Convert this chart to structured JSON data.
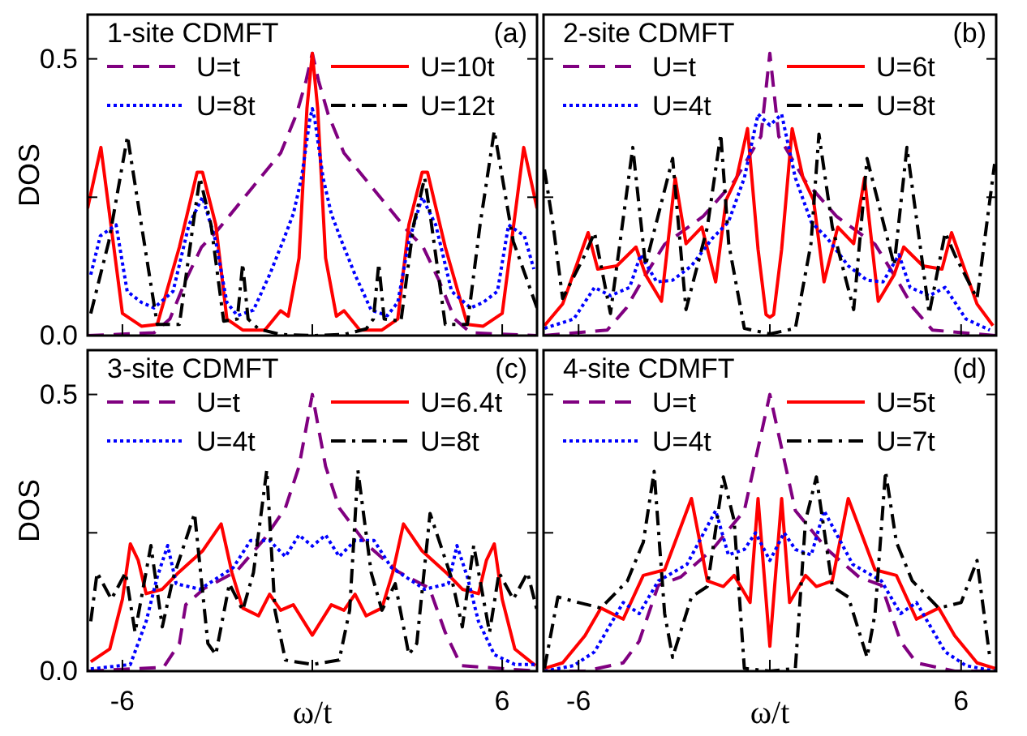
{
  "chart_data": [
    {
      "type": "line",
      "title": "1-site CDMFT",
      "annotations": [
        "(a)"
      ],
      "ylabel": "DOS",
      "xlim": [
        -7.1,
        7.1
      ],
      "ylim": [
        0,
        0.58
      ],
      "xticks": [
        -6,
        0,
        6
      ],
      "yticks": [
        {
          "value": 0,
          "label": "0.0"
        },
        {
          "value": 0.25,
          "label": null
        },
        {
          "value": 0.5,
          "label": "0.5"
        }
      ],
      "tick_labels": "y",
      "legend": "top",
      "grid": false,
      "series": [
        {
          "name": "U=t",
          "color": "#800080",
          "line_style": "dashed",
          "x": [
            -7.1,
            -5,
            -4.5,
            -4,
            -3.5,
            -3,
            -2,
            -1,
            -0.5,
            -0.2,
            0,
            0.2,
            0.5,
            1,
            2,
            3,
            3.5,
            4,
            4.5,
            5,
            7.1
          ],
          "values": [
            0,
            0.005,
            0.03,
            0.1,
            0.16,
            0.19,
            0.26,
            0.33,
            0.4,
            0.46,
            0.51,
            0.46,
            0.4,
            0.33,
            0.26,
            0.19,
            0.16,
            0.1,
            0.03,
            0.005,
            0
          ]
        },
        {
          "name": "U=10t",
          "color": "#ff0000",
          "line_style": "solid",
          "x": [
            -7.1,
            -6.68,
            -6.0,
            -5.4,
            -4.9,
            -4.2,
            -3.64,
            -3.47,
            -3.05,
            -2.7,
            -2.2,
            -1.5,
            -1.0,
            -0.76,
            -0.42,
            -0.17,
            0,
            0.17,
            0.42,
            0.76,
            1.0,
            1.5,
            2.2,
            2.7,
            3.05,
            3.47,
            3.64,
            4.2,
            4.9,
            5.4,
            6.0,
            6.68,
            7.1
          ],
          "values": [
            0.23,
            0.34,
            0.04,
            0.017,
            0.02,
            0.16,
            0.295,
            0.295,
            0.2,
            0.03,
            0.01,
            0.01,
            0.045,
            0.035,
            0.14,
            0.41,
            0.51,
            0.41,
            0.14,
            0.035,
            0.045,
            0.01,
            0.01,
            0.03,
            0.2,
            0.295,
            0.295,
            0.16,
            0.02,
            0.017,
            0.04,
            0.34,
            0.23
          ]
        },
        {
          "name": "U=8t",
          "color": "#0000ff",
          "line_style": "dotted",
          "x": [
            -7.0,
            -6.7,
            -6.2,
            -5.85,
            -5.4,
            -5.0,
            -4.4,
            -3.9,
            -3.47,
            -3.05,
            -2.7,
            -2.37,
            -1.86,
            -1.35,
            -0.93,
            -0.6,
            -0.34,
            -0.08,
            0,
            0.08,
            0.34,
            0.6,
            0.93,
            1.35,
            1.86,
            2.37,
            2.7,
            3.05,
            3.47,
            3.9,
            4.4,
            5.0,
            5.4,
            5.85,
            6.2,
            6.7,
            7.0
          ],
          "values": [
            0.11,
            0.18,
            0.2,
            0.08,
            0.06,
            0.05,
            0.08,
            0.2,
            0.25,
            0.17,
            0.06,
            0.036,
            0.046,
            0.11,
            0.17,
            0.22,
            0.285,
            0.39,
            0.41,
            0.39,
            0.285,
            0.22,
            0.17,
            0.11,
            0.046,
            0.036,
            0.06,
            0.17,
            0.25,
            0.2,
            0.08,
            0.05,
            0.06,
            0.08,
            0.2,
            0.18,
            0.12
          ]
        },
        {
          "name": "U=12t",
          "color": "#000000",
          "line_style": "dashdot",
          "x": [
            -7.0,
            -6.43,
            -5.84,
            -5.4,
            -4.9,
            -4.2,
            -3.72,
            -3.55,
            -3.2,
            -2.8,
            -2.37,
            -2.2,
            -2.03,
            -1.7,
            -1.0,
            0,
            1.0,
            1.7,
            1.93,
            2.1,
            2.27,
            2.8,
            3.2,
            3.55,
            3.72,
            4.2,
            4.9,
            5.3,
            5.75,
            6.35,
            7.1
          ],
          "values": [
            0.04,
            0.17,
            0.36,
            0.2,
            0.02,
            0.02,
            0.22,
            0.285,
            0.2,
            0.026,
            0.03,
            0.13,
            0.03,
            0.012,
            0.002,
            0,
            0.002,
            0.012,
            0.03,
            0.13,
            0.03,
            0.026,
            0.2,
            0.285,
            0.22,
            0.02,
            0.02,
            0.2,
            0.37,
            0.17,
            0.05
          ]
        }
      ]
    },
    {
      "type": "line",
      "title": "2-site CDMFT",
      "annotations": [
        "(b)"
      ],
      "xlim": [
        -7.1,
        7.1
      ],
      "ylim": [
        0,
        0.58
      ],
      "xticks": [
        -6,
        0,
        6
      ],
      "yticks": [
        {
          "value": 0,
          "label": null
        },
        {
          "value": 0.25,
          "label": null
        },
        {
          "value": 0.5,
          "label": null
        }
      ],
      "tick_labels": false,
      "legend": "top",
      "grid": false,
      "series": [
        {
          "name": "U=t",
          "color": "#800080",
          "line_style": "dashed",
          "x": [
            -7.1,
            -5.1,
            -4.5,
            -4,
            -3.3,
            -2.1,
            -1.1,
            -0.28,
            0,
            0.28,
            1.1,
            2.1,
            3.3,
            4,
            4.5,
            5.1,
            7.1
          ],
          "values": [
            0,
            0.01,
            0.05,
            0.1,
            0.165,
            0.215,
            0.28,
            0.36,
            0.51,
            0.36,
            0.28,
            0.215,
            0.165,
            0.1,
            0.05,
            0.01,
            0
          ]
        },
        {
          "name": "U=6t",
          "color": "#ff0000",
          "line_style": "solid",
          "x": [
            -7.07,
            -6.5,
            -5.7,
            -5.4,
            -4.8,
            -4.2,
            -3.9,
            -3.4,
            -2.97,
            -2.63,
            -2.13,
            -1.7,
            -1.37,
            -1.04,
            -0.7,
            -0.37,
            -0.12,
            0,
            0.12,
            0.37,
            0.7,
            1.04,
            1.37,
            1.7,
            2.13,
            2.63,
            2.97,
            3.4,
            3.9,
            4.2,
            4.8,
            5.4,
            5.7,
            6.5,
            7.0
          ],
          "values": [
            0.018,
            0.057,
            0.186,
            0.12,
            0.126,
            0.16,
            0.11,
            0.062,
            0.285,
            0.166,
            0.196,
            0.097,
            0.245,
            0.285,
            0.374,
            0.156,
            0.038,
            0.033,
            0.038,
            0.156,
            0.374,
            0.285,
            0.245,
            0.097,
            0.196,
            0.166,
            0.285,
            0.062,
            0.11,
            0.16,
            0.126,
            0.12,
            0.186,
            0.057,
            0.018
          ]
        },
        {
          "name": "U=4t",
          "color": "#0000ff",
          "line_style": "dotted",
          "x": [
            -7.07,
            -6.15,
            -5.5,
            -5,
            -4.4,
            -4.05,
            -3.55,
            -3.05,
            -2.46,
            -1.8,
            -1.3,
            -0.8,
            -0.37,
            0,
            0.37,
            0.8,
            1.3,
            1.8,
            2.46,
            3.05,
            3.55,
            4.05,
            4.4,
            5,
            5.5,
            6.15,
            6.9
          ],
          "values": [
            0.013,
            0.03,
            0.087,
            0.072,
            0.087,
            0.146,
            0.097,
            0.1,
            0.126,
            0.176,
            0.205,
            0.285,
            0.4,
            0.38,
            0.4,
            0.285,
            0.205,
            0.176,
            0.126,
            0.1,
            0.097,
            0.146,
            0.087,
            0.072,
            0.087,
            0.03,
            0.01
          ]
        },
        {
          "name": "U=8t",
          "color": "#000000",
          "line_style": "dashdot",
          "x": [
            -7.07,
            -6.8,
            -6.5,
            -5.8,
            -5.5,
            -5,
            -4.3,
            -3.9,
            -3.05,
            -2.63,
            -1.96,
            -1.54,
            -1.29,
            -0.8,
            0,
            0.8,
            1.29,
            1.54,
            1.96,
            2.63,
            3.05,
            3.9,
            4.3,
            5,
            5.5,
            5.8,
            6.5,
            6.8,
            7.05
          ],
          "values": [
            0.3,
            0.2,
            0.067,
            0.146,
            0.186,
            0.04,
            0.34,
            0.127,
            0.32,
            0.047,
            0.196,
            0.364,
            0.166,
            0.013,
            0.003,
            0.013,
            0.166,
            0.364,
            0.196,
            0.047,
            0.32,
            0.127,
            0.34,
            0.04,
            0.186,
            0.146,
            0.067,
            0.2,
            0.31
          ]
        }
      ]
    },
    {
      "type": "line",
      "title": "3-site CDMFT",
      "annotations": [
        "(c)"
      ],
      "xlabel": "ω/t",
      "ylabel": "DOS",
      "xlim": [
        -7.1,
        7.1
      ],
      "ylim": [
        0,
        0.58
      ],
      "xticks": [
        -6,
        {
          "value": 0,
          "label": null
        },
        6
      ],
      "yticks": [
        {
          "value": 0,
          "label": "0.0"
        },
        {
          "value": 0.25,
          "label": null
        },
        {
          "value": 0.5,
          "label": "0.5"
        }
      ],
      "legend": "top",
      "grid": false,
      "series": [
        {
          "name": "U=t",
          "color": "#800080",
          "line_style": "dashed",
          "x": [
            -7.1,
            -4.7,
            -4.2,
            -4,
            -3.4,
            -2.4,
            -1.5,
            -0.85,
            -0.42,
            0,
            0.42,
            0.85,
            1.7,
            2.7,
            3.7,
            4.2,
            4.7,
            7.1
          ],
          "values": [
            0,
            0.007,
            0.05,
            0.12,
            0.15,
            0.18,
            0.24,
            0.295,
            0.37,
            0.5,
            0.37,
            0.295,
            0.23,
            0.18,
            0.15,
            0.07,
            0.01,
            0
          ]
        },
        {
          "name": "U=6.4t",
          "color": "#ff0000",
          "line_style": "solid",
          "x": [
            -7.0,
            -6.4,
            -6,
            -5.75,
            -5.5,
            -5.25,
            -4.74,
            -4.23,
            -3.47,
            -2.88,
            -2.54,
            -2.2,
            -1.7,
            -1.35,
            -1.0,
            -0.6,
            0,
            0.6,
            1.0,
            1.35,
            1.7,
            2.2,
            2.54,
            2.88,
            3.47,
            4.23,
            4.74,
            5.25,
            5.5,
            5.75,
            6,
            6.4,
            7.05
          ],
          "values": [
            0.017,
            0.04,
            0.13,
            0.23,
            0.2,
            0.14,
            0.148,
            0.178,
            0.217,
            0.266,
            0.178,
            0.114,
            0.1,
            0.139,
            0.11,
            0.12,
            0.065,
            0.12,
            0.11,
            0.139,
            0.1,
            0.114,
            0.178,
            0.266,
            0.217,
            0.178,
            0.148,
            0.14,
            0.2,
            0.23,
            0.13,
            0.04,
            0.01
          ]
        },
        {
          "name": "U=4t",
          "color": "#0000ff",
          "line_style": "dotted",
          "x": [
            -7.0,
            -5.75,
            -5.25,
            -4.9,
            -4.57,
            -4.3,
            -3.55,
            -2.5,
            -1.95,
            -1.35,
            -0.85,
            -0.42,
            0,
            0.42,
            0.85,
            1.35,
            1.95,
            2.5,
            3.55,
            4.3,
            4.57,
            4.9,
            5.25,
            5.75,
            6.4,
            7.1
          ],
          "values": [
            0.004,
            0.012,
            0.09,
            0.17,
            0.227,
            0.158,
            0.148,
            0.187,
            0.236,
            0.236,
            0.207,
            0.246,
            0.226,
            0.246,
            0.207,
            0.236,
            0.236,
            0.187,
            0.148,
            0.158,
            0.227,
            0.17,
            0.09,
            0.03,
            0.012,
            0.012
          ]
        },
        {
          "name": "U=8t",
          "color": "#000000",
          "line_style": "dashdot",
          "x": [
            -7.0,
            -6.8,
            -6.35,
            -5.9,
            -5.6,
            -5.1,
            -4.74,
            -4.4,
            -3.72,
            -3.3,
            -3.05,
            -2.62,
            -2.2,
            -1.86,
            -1.44,
            -1.18,
            -0.85,
            0,
            0.85,
            1.18,
            1.44,
            1.86,
            2.2,
            2.62,
            3.05,
            3.3,
            3.72,
            4.4,
            4.74,
            5.1,
            5.6,
            5.9,
            6.35,
            6.8,
            7.1
          ],
          "values": [
            0.09,
            0.178,
            0.13,
            0.178,
            0.07,
            0.227,
            0.08,
            0.168,
            0.285,
            0.05,
            0.03,
            0.158,
            0.11,
            0.178,
            0.363,
            0.11,
            0.02,
            0.012,
            0.02,
            0.11,
            0.363,
            0.178,
            0.11,
            0.158,
            0.03,
            0.05,
            0.285,
            0.168,
            0.08,
            0.227,
            0.07,
            0.178,
            0.13,
            0.178,
            0.11
          ]
        }
      ]
    },
    {
      "type": "line",
      "title": "4-site CDMFT",
      "annotations": [
        "(d)"
      ],
      "xlabel": "ω/t",
      "xlim": [
        -7.1,
        7.1
      ],
      "ylim": [
        0,
        0.58
      ],
      "xticks": [
        -6,
        {
          "value": 0,
          "label": null
        },
        6
      ],
      "yticks": [
        {
          "value": 0,
          "label": null
        },
        {
          "value": 0.25,
          "label": null
        },
        {
          "value": 0.5,
          "label": null
        }
      ],
      "tick_labels": "x",
      "legend": "top",
      "grid": false,
      "series": [
        {
          "name": "U=t",
          "color": "#800080",
          "line_style": "dashed",
          "x": [
            -7.1,
            -5.8,
            -4.6,
            -4.1,
            -3.5,
            -2.8,
            -1.8,
            -0.8,
            0,
            0.8,
            1.8,
            2.8,
            3.5,
            4.1,
            4.6,
            5.8,
            7.1
          ],
          "values": [
            0,
            0,
            0.015,
            0.054,
            0.155,
            0.17,
            0.22,
            0.29,
            0.5,
            0.29,
            0.22,
            0.17,
            0.155,
            0.054,
            0.015,
            0,
            0
          ]
        },
        {
          "name": "U=5t",
          "color": "#ff0000",
          "line_style": "solid",
          "x": [
            -7.07,
            -6.5,
            -5.8,
            -5.3,
            -4.6,
            -3.97,
            -3.3,
            -2.46,
            -1.96,
            -1.46,
            -1.12,
            -0.62,
            -0.37,
            0,
            0.37,
            0.62,
            1.12,
            1.46,
            1.96,
            2.46,
            3.3,
            3.97,
            4.6,
            5.3,
            5.8,
            6.5,
            7.07
          ],
          "values": [
            0.005,
            0.015,
            0.064,
            0.114,
            0.094,
            0.173,
            0.183,
            0.312,
            0.163,
            0.153,
            0.173,
            0.124,
            0.312,
            0.045,
            0.312,
            0.124,
            0.173,
            0.153,
            0.163,
            0.312,
            0.183,
            0.173,
            0.094,
            0.114,
            0.064,
            0.015,
            0.005
          ]
        },
        {
          "name": "U=4t",
          "color": "#0000ff",
          "line_style": "dotted",
          "x": [
            -7.07,
            -6.15,
            -5.5,
            -4.6,
            -4.1,
            -3.5,
            -2.6,
            -1.7,
            -1.3,
            -0.8,
            -0.45,
            0,
            0.45,
            0.8,
            1.3,
            1.7,
            2.6,
            3.5,
            4.1,
            4.6,
            5.5,
            6.15,
            7.07
          ],
          "values": [
            0,
            0.01,
            0.035,
            0.124,
            0.104,
            0.163,
            0.193,
            0.29,
            0.21,
            0.22,
            0.25,
            0.2,
            0.25,
            0.22,
            0.21,
            0.29,
            0.193,
            0.163,
            0.104,
            0.124,
            0.035,
            0.01,
            0
          ]
        },
        {
          "name": "U=7t",
          "color": "#000000",
          "line_style": "dashdot",
          "x": [
            -7.07,
            -6.65,
            -6,
            -5.3,
            -4.47,
            -3.97,
            -3.63,
            -3.3,
            -3.05,
            -2.46,
            -1.96,
            -1.46,
            -1.12,
            -0.8,
            0,
            0.8,
            1.12,
            1.46,
            1.96,
            2.46,
            3.05,
            3.3,
            3.63,
            3.97,
            4.47,
            5.3,
            6,
            6.5,
            6.9
          ],
          "values": [
            0.005,
            0.134,
            0.124,
            0.114,
            0.163,
            0.233,
            0.361,
            0.104,
            0.025,
            0.134,
            0.153,
            0.351,
            0.272,
            0.005,
            0,
            0.005,
            0.272,
            0.351,
            0.153,
            0.134,
            0.025,
            0.104,
            0.361,
            0.233,
            0.163,
            0.114,
            0.124,
            0.2,
            0.025
          ]
        }
      ]
    }
  ]
}
